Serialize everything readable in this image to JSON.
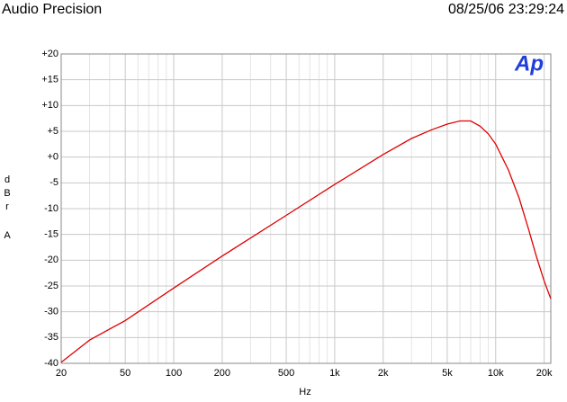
{
  "header": {
    "brand": "Audio Precision",
    "timestamp": "08/25/06 23:29:24",
    "logo": "Ap"
  },
  "chart_data": {
    "type": "line",
    "x_label": "Hz",
    "y_label": [
      "d",
      "B",
      "r",
      "A"
    ],
    "x_log": true,
    "grid": true,
    "xlim": [
      20,
      22000
    ],
    "ylim": [
      -40,
      20
    ],
    "xticks": [
      20,
      50,
      100,
      200,
      500,
      {
        "value": 1000,
        "label": "1k"
      },
      {
        "value": 2000,
        "label": "2k"
      },
      {
        "value": 5000,
        "label": "5k"
      },
      {
        "value": 10000,
        "label": "10k"
      },
      {
        "value": 20000,
        "label": "20k"
      }
    ],
    "x_minor_ticks": [
      30,
      40,
      60,
      70,
      80,
      90,
      300,
      400,
      600,
      700,
      800,
      900,
      3000,
      4000,
      6000,
      7000,
      8000,
      9000
    ],
    "yticks": [
      {
        "value": 20,
        "label": "+20"
      },
      {
        "value": 15,
        "label": "+15"
      },
      {
        "value": 10,
        "label": "+10"
      },
      {
        "value": 5,
        "label": "+5"
      },
      {
        "value": 0,
        "label": "+0"
      },
      -5,
      -10,
      -15,
      -20,
      -25,
      -30,
      -35,
      -40
    ],
    "x": [
      20,
      30,
      50,
      100,
      200,
      500,
      1000,
      2000,
      3000,
      4000,
      5000,
      6000,
      7000,
      8000,
      9000,
      10000,
      12000,
      14000,
      16000,
      18000,
      20000,
      22000
    ],
    "series": [
      {
        "color": "#e00000",
        "values": [
          -39.8,
          -35.5,
          -31.7,
          -25.4,
          -19.2,
          -11.3,
          -5.3,
          0.5,
          3.6,
          5.3,
          6.4,
          7,
          7,
          6,
          4.5,
          2.5,
          -2.5,
          -8,
          -14,
          -19.5,
          -24,
          -27.5
        ]
      }
    ]
  }
}
